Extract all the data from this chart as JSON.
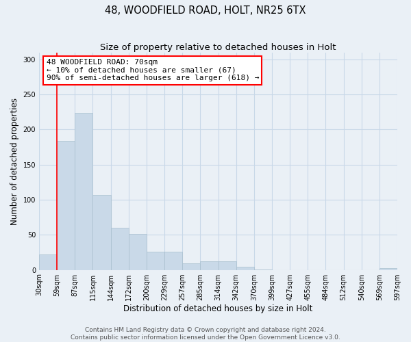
{
  "title": "48, WOODFIELD ROAD, HOLT, NR25 6TX",
  "subtitle": "Size of property relative to detached houses in Holt",
  "xlabel": "Distribution of detached houses by size in Holt",
  "ylabel": "Number of detached properties",
  "bar_values": [
    22,
    184,
    224,
    107,
    60,
    51,
    26,
    26,
    9,
    12,
    12,
    4,
    1,
    0,
    0,
    0,
    0,
    0,
    0,
    3
  ],
  "bin_labels": [
    "30sqm",
    "59sqm",
    "87sqm",
    "115sqm",
    "144sqm",
    "172sqm",
    "200sqm",
    "229sqm",
    "257sqm",
    "285sqm",
    "314sqm",
    "342sqm",
    "370sqm",
    "399sqm",
    "427sqm",
    "455sqm",
    "484sqm",
    "512sqm",
    "540sqm",
    "569sqm",
    "597sqm"
  ],
  "bar_color": "#c9d9e8",
  "bar_edge_color": "#a8bfce",
  "grid_color": "#c8d8e8",
  "background_color": "#eaf0f6",
  "vline_color": "red",
  "annotation_text": "48 WOODFIELD ROAD: 70sqm\n← 10% of detached houses are smaller (67)\n90% of semi-detached houses are larger (618) →",
  "annotation_box_facecolor": "white",
  "annotation_box_edgecolor": "red",
  "footer_text": "Contains HM Land Registry data © Crown copyright and database right 2024.\nContains public sector information licensed under the Open Government Licence v3.0.",
  "ylim": [
    0,
    310
  ],
  "yticks": [
    0,
    50,
    100,
    150,
    200,
    250,
    300
  ],
  "title_fontsize": 10.5,
  "subtitle_fontsize": 9.5,
  "xlabel_fontsize": 8.5,
  "ylabel_fontsize": 8.5,
  "tick_fontsize": 7,
  "annotation_fontsize": 8,
  "footer_fontsize": 6.5
}
